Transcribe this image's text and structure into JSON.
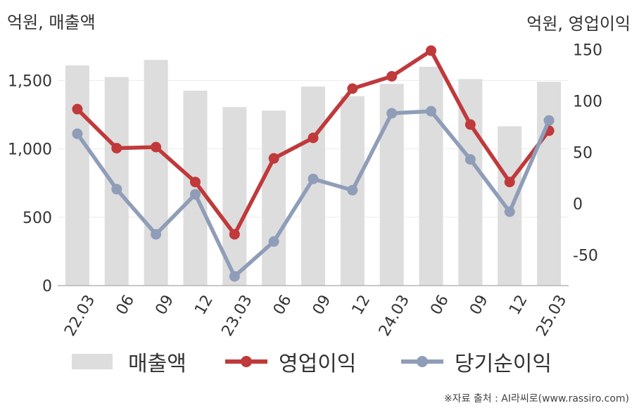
{
  "chart_data": {
    "type": "bar+line",
    "y_left_label": "억원, 매출액",
    "y_right_label": "억원, 영업이익",
    "categories": [
      "22.03",
      "06",
      "09",
      "12",
      "23.03",
      "06",
      "09",
      "12",
      "24.03",
      "06",
      "09",
      "12",
      "25.03"
    ],
    "y_left_ticks": [
      "0",
      "500",
      "1,000",
      "1,500"
    ],
    "y_left_range": [
      0,
      1800
    ],
    "y_right_ticks": [
      "-50",
      "0",
      "50",
      "100",
      "150"
    ],
    "y_right_range": [
      -80,
      160
    ],
    "bars": {
      "name": "매출액",
      "axis": "left",
      "color": "#dddddd",
      "values": [
        1610,
        1525,
        1650,
        1425,
        1305,
        1280,
        1455,
        1385,
        1475,
        1600,
        1510,
        1165,
        1490
      ]
    },
    "lines": [
      {
        "name": "영업이익",
        "axis": "right",
        "color": "#c0393b",
        "values": [
          92,
          54,
          55,
          21,
          -30,
          44,
          64,
          112,
          124,
          149,
          77,
          21,
          71
        ]
      },
      {
        "name": "당기순이익",
        "axis": "right",
        "color": "#8f9db8",
        "values": [
          68,
          14,
          -30,
          9,
          -71,
          -37,
          24,
          13,
          88,
          90,
          43,
          -8,
          81
        ]
      }
    ],
    "grid": true,
    "legend_position": "bottom"
  },
  "legend": {
    "sales": "매출액",
    "operating_profit": "영업이익",
    "net_profit": "당기순이익"
  },
  "source": "※자료 출처 : AI라씨로(www.rassiro.com)"
}
